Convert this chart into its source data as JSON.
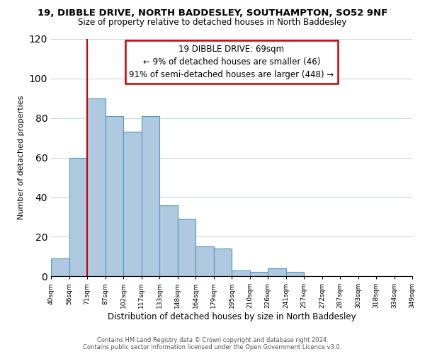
{
  "title": "19, DIBBLE DRIVE, NORTH BADDESLEY, SOUTHAMPTON, SO52 9NF",
  "subtitle": "Size of property relative to detached houses in North Baddesley",
  "xlabel": "Distribution of detached houses by size in North Baddesley",
  "ylabel": "Number of detached properties",
  "bar_color": "#aec9e0",
  "bar_edge_color": "#5599bb",
  "bin_labels": [
    "40sqm",
    "56sqm",
    "71sqm",
    "87sqm",
    "102sqm",
    "117sqm",
    "133sqm",
    "148sqm",
    "164sqm",
    "179sqm",
    "195sqm",
    "210sqm",
    "226sqm",
    "241sqm",
    "257sqm",
    "272sqm",
    "287sqm",
    "303sqm",
    "318sqm",
    "334sqm",
    "349sqm"
  ],
  "bar_heights": [
    9,
    60,
    90,
    81,
    73,
    81,
    36,
    29,
    15,
    14,
    3,
    2,
    4,
    2,
    0,
    0,
    0,
    0,
    0,
    0
  ],
  "ylim": [
    0,
    120
  ],
  "yticks": [
    0,
    20,
    40,
    60,
    80,
    100,
    120
  ],
  "property_line_label": "19 DIBBLE DRIVE: 69sqm",
  "annotation_line1": "← 9% of detached houses are smaller (46)",
  "annotation_line2": "91% of semi-detached houses are larger (448) →",
  "annotation_box_color": "#ffffff",
  "annotation_box_edge": "#cc0000",
  "vline_color": "#cc0000",
  "footer1": "Contains HM Land Registry data © Crown copyright and database right 2024.",
  "footer2": "Contains public sector information licensed under the Open Government Licence v3.0.",
  "background_color": "#ffffff",
  "grid_color": "#c8d8e8"
}
